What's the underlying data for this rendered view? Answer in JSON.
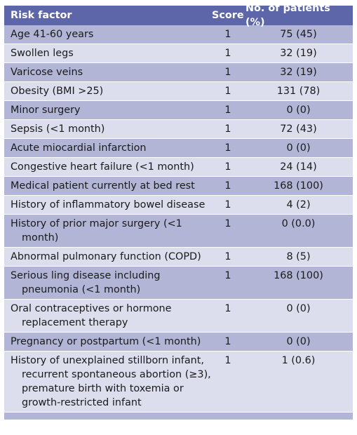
{
  "header": {
    "factor": "Risk factor",
    "score": "Score",
    "patients": "No. of patients (%)"
  },
  "rows": [
    {
      "factor": "Age 41-60 years",
      "score": "1",
      "patients": "75 (45)"
    },
    {
      "factor": "Swollen legs",
      "score": "1",
      "patients": "32 (19)"
    },
    {
      "factor": "Varicose veins",
      "score": "1",
      "patients": "32 (19)"
    },
    {
      "factor": "Obesity (BMI >25)",
      "score": "1",
      "patients": "131 (78)"
    },
    {
      "factor": "Minor surgery",
      "score": "1",
      "patients": "0 (0)"
    },
    {
      "factor": "Sepsis (<1 month)",
      "score": "1",
      "patients": "72 (43)"
    },
    {
      "factor": "Acute miocardial infarction",
      "score": "1",
      "patients": "0 (0)"
    },
    {
      "factor": "Congestive heart failure (<1 month)",
      "score": "1",
      "patients": "24 (14)"
    },
    {
      "factor": "Medical patient currently at bed rest",
      "score": "1",
      "patients": "168 (100)"
    },
    {
      "factor": "History of inflammatory bowel disease",
      "score": "1",
      "patients": "4 (2)"
    },
    {
      "factor": "History of prior major surgery (<1 month)",
      "score": "1",
      "patients": "0 (0.0)"
    },
    {
      "factor": "Abnormal pulmonary function (COPD)",
      "score": "1",
      "patients": "8 (5)"
    },
    {
      "factor": "Serious ling disease including pneumonia (<1 month)",
      "score": "1",
      "patients": "168 (100)"
    },
    {
      "factor": "Oral contraceptives or hormone replacement therapy",
      "score": "1",
      "patients": "0 (0)"
    },
    {
      "factor": "Pregnancy or postpartum (<1 month)",
      "score": "1",
      "patients": "0 (0)"
    },
    {
      "factor": "History of unexplained stillborn infant, recurrent spontaneous abortion (≥3), premature birth with toxemia or growth-restricted infant",
      "score": "1",
      "patients": "1 (0.6)"
    }
  ]
}
